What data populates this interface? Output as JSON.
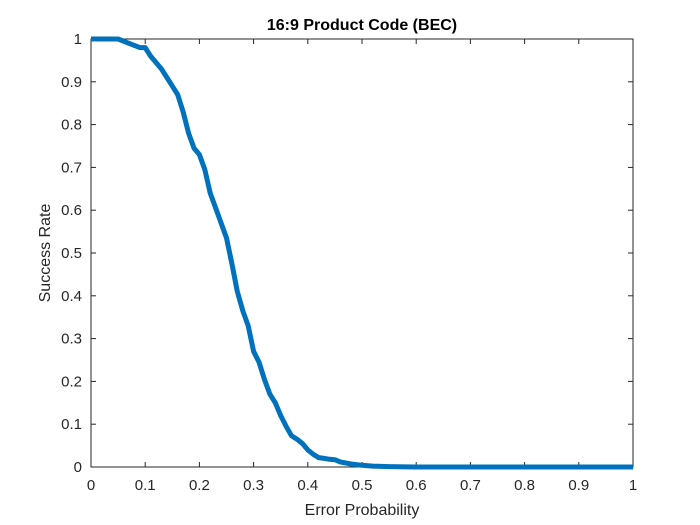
{
  "chart_data": {
    "type": "line",
    "title": "16:9  Product Code (BEC)",
    "xlabel": "Error Probability",
    "ylabel": "Success Rate",
    "xlim": [
      0,
      1
    ],
    "ylim": [
      0,
      1
    ],
    "xticks": [
      "0",
      "0.1",
      "0.2",
      "0.3",
      "0.4",
      "0.5",
      "0.6",
      "0.7",
      "0.8",
      "0.9",
      "1"
    ],
    "yticks": [
      "0",
      "0.1",
      "0.2",
      "0.3",
      "0.4",
      "0.5",
      "0.6",
      "0.7",
      "0.8",
      "0.9",
      "1"
    ],
    "grid": false,
    "line_color": "#0072BD",
    "series": [
      {
        "x": [
          0,
          0.05,
          0.07,
          0.09,
          0.1,
          0.11,
          0.13,
          0.15,
          0.16,
          0.17,
          0.18,
          0.19,
          0.2,
          0.21,
          0.22,
          0.23,
          0.24,
          0.25,
          0.26,
          0.27,
          0.28,
          0.29,
          0.3,
          0.31,
          0.32,
          0.33,
          0.34,
          0.35,
          0.36,
          0.37,
          0.38,
          0.39,
          0.4,
          0.41,
          0.42,
          0.43,
          0.44,
          0.45,
          0.46,
          0.48,
          0.5,
          0.52,
          0.55,
          0.6,
          0.7,
          0.8,
          0.9,
          1.0
        ],
        "y": [
          1.0,
          1.0,
          0.99,
          0.98,
          0.98,
          0.96,
          0.93,
          0.89,
          0.87,
          0.83,
          0.78,
          0.745,
          0.73,
          0.695,
          0.64,
          0.605,
          0.57,
          0.535,
          0.475,
          0.41,
          0.365,
          0.33,
          0.27,
          0.245,
          0.205,
          0.17,
          0.15,
          0.12,
          0.095,
          0.073,
          0.065,
          0.055,
          0.04,
          0.03,
          0.022,
          0.02,
          0.018,
          0.017,
          0.012,
          0.007,
          0.004,
          0.002,
          0.001,
          0.0,
          0.0,
          0.0,
          0.0,
          0.0
        ]
      }
    ]
  }
}
